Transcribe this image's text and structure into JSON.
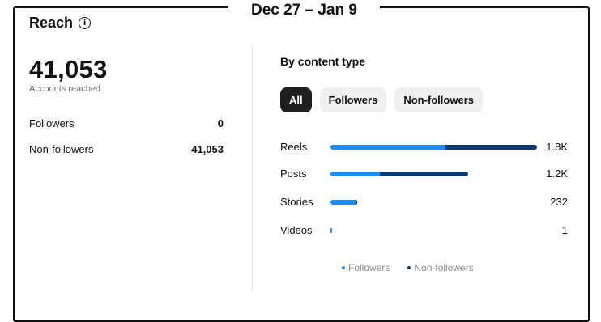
{
  "header": {
    "title": "Reach",
    "date_range": "Dec 27 – Jan 9"
  },
  "summary": {
    "total": "41,053",
    "total_label": "Accounts reached",
    "rows": [
      {
        "label": "Followers",
        "value": "0"
      },
      {
        "label": "Non-followers",
        "value": "41,053"
      }
    ]
  },
  "content": {
    "title": "By content type",
    "filters": [
      {
        "label": "All",
        "active": true
      },
      {
        "label": "Followers",
        "active": false
      },
      {
        "label": "Non-followers",
        "active": false
      }
    ],
    "legend": [
      {
        "label": "Followers",
        "color": "#1b8df2"
      },
      {
        "label": "Non-followers",
        "color": "#0b3a6e"
      }
    ]
  },
  "chart_data": {
    "type": "bar",
    "orientation": "horizontal",
    "stacked": true,
    "categories": [
      "Reels",
      "Posts",
      "Stories",
      "Videos"
    ],
    "value_labels": [
      "1.8K",
      "1.2K",
      "232",
      "1"
    ],
    "totals": [
      1800,
      1200,
      232,
      1
    ],
    "series": [
      {
        "name": "Followers",
        "color": "#1b8df2",
        "values": [
          1000,
          430,
          220,
          1
        ]
      },
      {
        "name": "Non-followers",
        "color": "#0b3a6e",
        "values": [
          800,
          770,
          12,
          0
        ]
      }
    ],
    "xlim": [
      0,
      1800
    ]
  }
}
